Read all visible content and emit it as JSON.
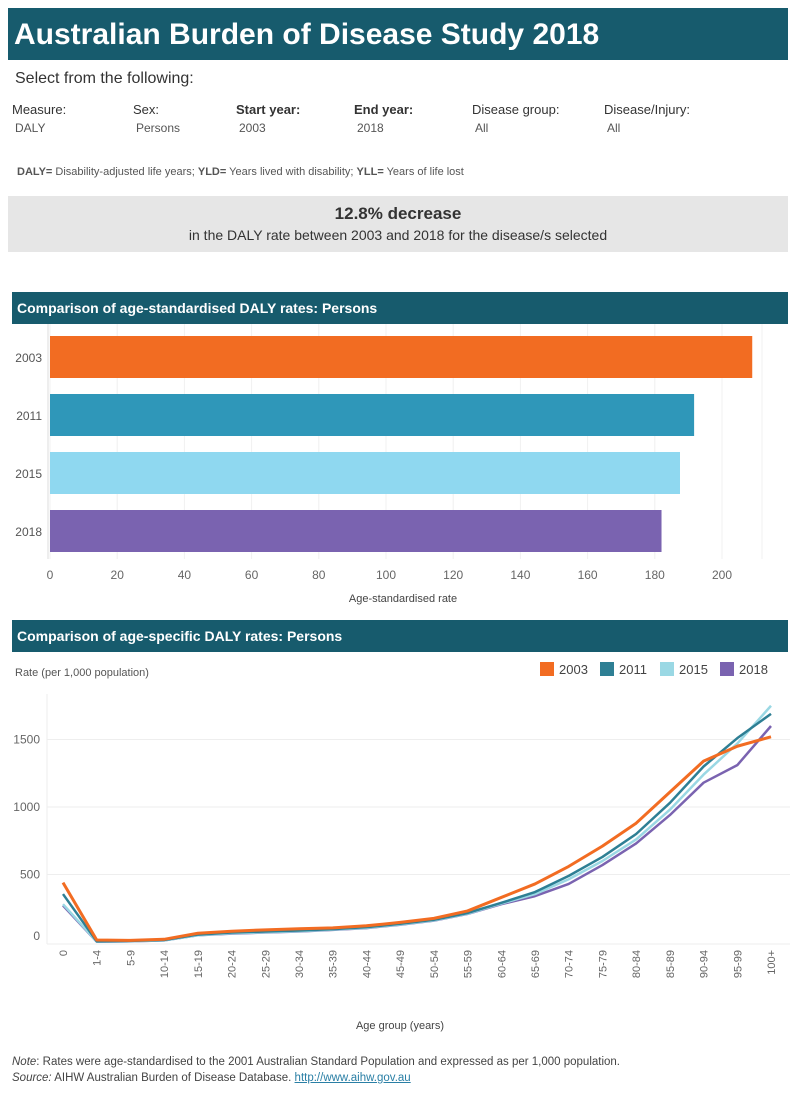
{
  "title": "Australian Burden of Disease Study 2018",
  "select_label": "Select from the following:",
  "filters": [
    {
      "label": "Measure:",
      "value": "DALY",
      "bold": false
    },
    {
      "label": "Sex:",
      "value": "Persons",
      "bold": false
    },
    {
      "label": "Start year:",
      "value": "2003",
      "bold": true
    },
    {
      "label": "End year:",
      "value": "2018",
      "bold": true
    },
    {
      "label": "Disease group:",
      "value": "All",
      "bold": false
    },
    {
      "label": "Disease/Injury:",
      "value": "All",
      "bold": false
    }
  ],
  "abbr": {
    "k1": "DALY=",
    "v1": " Disability-adjusted life years; ",
    "k2": "YLD=",
    "v2": " Years lived with disability; ",
    "k3": "YLL=",
    "v3": " Years of life lost"
  },
  "kpi": {
    "headline": "12.8% decrease",
    "sub": "in the DALY rate between 2003 and 2018 for the disease/s selected"
  },
  "colors": {
    "header": "#175b6d",
    "2003": "#f26c22",
    "2011": "#2e7f94",
    "2015": "#9ad8e4",
    "2018": "#7a63b0"
  },
  "chart_data": [
    {
      "type": "bar",
      "orientation": "horizontal",
      "title": "Comparison of age-standardised DALY rates: Persons",
      "categories": [
        "2003",
        "2011",
        "2015",
        "2018"
      ],
      "values": [
        209,
        191.7,
        187.5,
        182
      ],
      "bar_colors": [
        "#f26c22",
        "#2f97b9",
        "#8fd8f0",
        "#7a63b0"
      ],
      "xlabel": "Age-standardised rate",
      "xlim": [
        0,
        210
      ],
      "xticks": [
        0,
        20,
        40,
        60,
        80,
        100,
        120,
        140,
        160,
        180,
        200
      ],
      "grid": true
    },
    {
      "type": "line",
      "title": "Comparison of age-specific DALY rates: Persons",
      "ylabel": "Rate (per 1,000 population)",
      "xlabel": "Age group (years)",
      "ylim": [
        0,
        1800
      ],
      "yticks": [
        0,
        500,
        1000,
        1500
      ],
      "legend": "top-right",
      "grid": true,
      "categories": [
        "0",
        "1-4",
        "5-9",
        "10-14",
        "15-19",
        "20-24",
        "25-29",
        "30-34",
        "35-39",
        "40-44",
        "45-49",
        "50-54",
        "55-59",
        "60-64",
        "65-69",
        "70-74",
        "75-79",
        "80-84",
        "85-89",
        "90-94",
        "95-99",
        "100+"
      ],
      "series": [
        {
          "name": "2018",
          "color": "#7a63b0",
          "values": [
            270,
            3,
            5,
            12,
            50,
            62,
            70,
            78,
            90,
            103,
            128,
            158,
            208,
            280,
            340,
            430,
            570,
            730,
            940,
            1180,
            1310,
            1600
          ]
        },
        {
          "name": "2015",
          "color": "#9ad8e4",
          "values": [
            280,
            3,
            6,
            12,
            50,
            65,
            72,
            80,
            92,
            105,
            130,
            160,
            210,
            285,
            355,
            465,
            600,
            760,
            980,
            1240,
            1470,
            1750
          ]
        },
        {
          "name": "2011",
          "color": "#2e7f94",
          "values": [
            355,
            5,
            8,
            15,
            55,
            70,
            78,
            85,
            95,
            110,
            135,
            165,
            215,
            290,
            370,
            490,
            630,
            800,
            1030,
            1300,
            1510,
            1690
          ]
        },
        {
          "name": "2003",
          "color": "#f26c22",
          "values": [
            440,
            15,
            12,
            20,
            65,
            80,
            90,
            98,
            105,
            120,
            145,
            175,
            230,
            330,
            430,
            560,
            710,
            880,
            1110,
            1340,
            1450,
            1520
          ]
        }
      ],
      "legend_order": [
        "2003",
        "2011",
        "2015",
        "2018"
      ]
    }
  ],
  "note": {
    "label": "Note",
    "text": ": Rates were age-standardised to the 2001 Australian Standard Population and expressed as per 1,000 population."
  },
  "source": {
    "label": "Source:",
    "text": " AIHW Australian Burden of Disease Database. ",
    "link": "http://www.aihw.gov.au"
  }
}
